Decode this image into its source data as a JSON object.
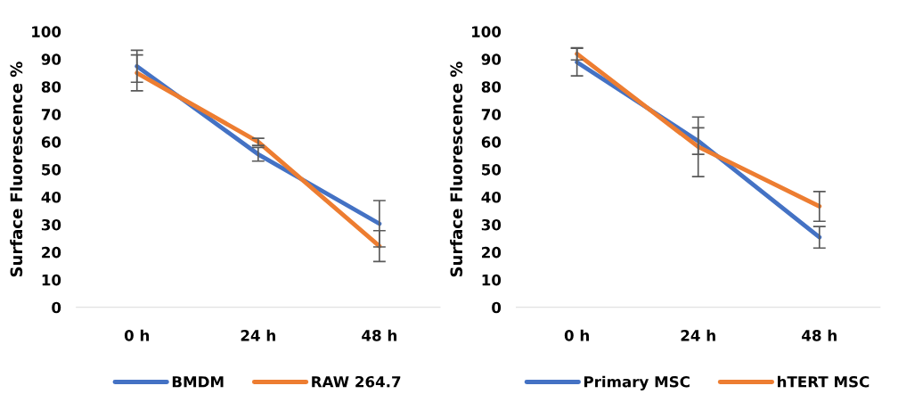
{
  "chart_data": [
    {
      "type": "line",
      "ylabel": "Surface Fluorescence %",
      "categories": [
        "0 h",
        "24 h",
        "48 h"
      ],
      "ylim": [
        0,
        100
      ],
      "yticks": [
        0,
        10,
        20,
        30,
        40,
        50,
        60,
        70,
        80,
        90,
        100
      ],
      "legend": "bottom",
      "grid": false,
      "marker": "none",
      "line_style": "solid",
      "series": [
        {
          "name": "BMDM",
          "color": "#4472c4",
          "values": [
            87.4,
            55.5,
            30.3
          ],
          "errors": [
            5.8,
            2.5,
            8.4
          ]
        },
        {
          "name": "RAW 264.7",
          "color": "#ed7d31",
          "values": [
            85,
            60,
            22.2
          ],
          "errors": [
            6.5,
            1.3,
            5.6
          ]
        }
      ]
    },
    {
      "type": "line",
      "ylabel": "Surface Fluorescence %",
      "categories": [
        "0 h",
        "24 h",
        "48 h"
      ],
      "ylim": [
        0,
        100
      ],
      "yticks": [
        0,
        10,
        20,
        30,
        40,
        50,
        60,
        70,
        80,
        90,
        100
      ],
      "legend": "bottom",
      "grid": false,
      "marker": "none",
      "line_style": "solid",
      "series": [
        {
          "name": "Primary MSC",
          "color": "#4472c4",
          "values": [
            88.9,
            60.3,
            25.4
          ],
          "errors": [
            5,
            4.8,
            3.9
          ]
        },
        {
          "name": "hTERT MSC",
          "color": "#ed7d31",
          "values": [
            91.9,
            58.2,
            36.6
          ],
          "errors": [
            2.2,
            10.8,
            5.4
          ]
        }
      ]
    }
  ]
}
